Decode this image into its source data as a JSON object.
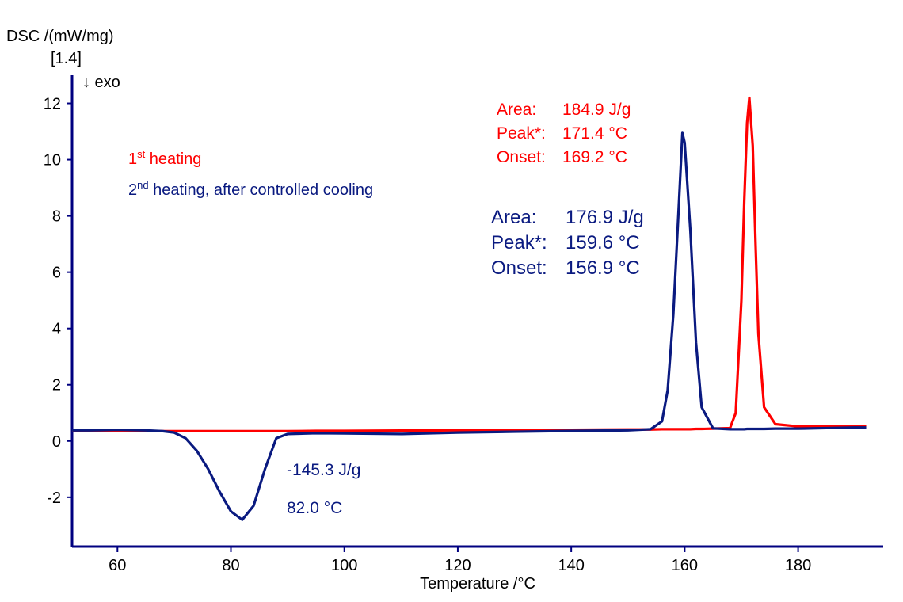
{
  "chart_data": {
    "type": "line",
    "ylabel": "DSC /(mW/mg)",
    "ylabel_note": "[1.4]",
    "direction_note": "↓ exo",
    "xlabel": "Temperature /°C",
    "axis_color": "#000080",
    "xlim": [
      52,
      195
    ],
    "ylim": [
      -3.75,
      13
    ],
    "xticks": [
      60,
      80,
      100,
      120,
      140,
      160,
      180
    ],
    "yticks": [
      -2,
      0,
      2,
      4,
      6,
      8,
      10,
      12
    ],
    "x": [
      52,
      55,
      60,
      65,
      68,
      70,
      72,
      74,
      76,
      78,
      80,
      82,
      84,
      86,
      88,
      90,
      95,
      100,
      110,
      120,
      130,
      140,
      150,
      154,
      156,
      157,
      158,
      159,
      159.6,
      160,
      161,
      162,
      163,
      165,
      168,
      169,
      170,
      170.5,
      171,
      171.4,
      172,
      172.5,
      173,
      174,
      176,
      180,
      185,
      190,
      192
    ],
    "series": [
      {
        "name": "1st heating",
        "color": "#ff0000",
        "values": [
          0.35,
          0.35,
          0.35,
          0.35,
          0.35,
          0.35,
          0.35,
          0.35,
          0.35,
          0.35,
          0.35,
          0.35,
          0.35,
          0.35,
          0.35,
          0.35,
          0.36,
          0.36,
          0.37,
          0.38,
          0.39,
          0.4,
          0.41,
          0.41,
          0.42,
          0.42,
          0.42,
          0.42,
          0.42,
          0.42,
          0.42,
          0.43,
          0.43,
          0.44,
          0.46,
          1.0,
          5.0,
          8.5,
          11.3,
          12.2,
          10.5,
          7.0,
          3.8,
          1.2,
          0.6,
          0.52,
          0.52,
          0.53,
          0.53
        ]
      },
      {
        "name": "2nd heating, after controlled cooling",
        "color": "#0a1a80",
        "values": [
          0.38,
          0.38,
          0.4,
          0.38,
          0.35,
          0.3,
          0.1,
          -0.35,
          -1.0,
          -1.8,
          -2.5,
          -2.8,
          -2.3,
          -1.0,
          0.1,
          0.25,
          0.28,
          0.27,
          0.25,
          0.3,
          0.33,
          0.36,
          0.38,
          0.42,
          0.7,
          1.8,
          4.5,
          8.5,
          10.95,
          10.6,
          7.5,
          3.5,
          1.2,
          0.45,
          0.42,
          0.42,
          0.42,
          0.42,
          0.43,
          0.43,
          0.43,
          0.43,
          0.43,
          0.43,
          0.44,
          0.44,
          0.46,
          0.48,
          0.48
        ]
      }
    ],
    "annotations": [
      {
        "color": "#ff0000",
        "lines": [
          [
            "Area:",
            "184.9 J/g"
          ],
          [
            "Peak*:",
            "171.4 °C"
          ],
          [
            "Onset:",
            "169.2 °C"
          ]
        ]
      },
      {
        "color": "#0a1a80",
        "lines": [
          [
            "Area:",
            "176.9 J/g"
          ],
          [
            "Peak*:",
            "159.6 °C"
          ],
          [
            "Onset:",
            "156.9 °C"
          ]
        ]
      },
      {
        "color": "#0a1a80",
        "lines": [
          [
            "-145.3 J/g"
          ],
          [
            "82.0 °C"
          ]
        ]
      }
    ]
  }
}
